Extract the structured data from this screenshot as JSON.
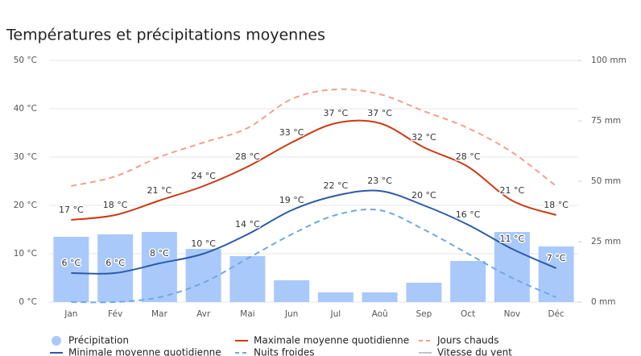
{
  "chart_data": {
    "type": "combo",
    "title": "Températures et précipitations moyennes",
    "categories": [
      "Jan",
      "Fév",
      "Mar",
      "Avr",
      "Mai",
      "Jun",
      "Jul",
      "Aoû",
      "Sep",
      "Oct",
      "Nov",
      "Déc"
    ],
    "ylim": [
      0,
      50
    ],
    "yticks": [
      {
        "value": 0,
        "label": "0 °C"
      },
      {
        "value": 10,
        "label": "10 °C"
      },
      {
        "value": 20,
        "label": "20 °C"
      },
      {
        "value": 30,
        "label": "30 °C"
      },
      {
        "value": 40,
        "label": "40 °C"
      },
      {
        "value": 50,
        "label": "50 °C"
      }
    ],
    "y2lim": [
      0,
      100
    ],
    "y2ticks": [
      {
        "value": 0,
        "label": "0 mm"
      },
      {
        "value": 25,
        "label": "25 mm"
      },
      {
        "value": 50,
        "label": "50 mm"
      },
      {
        "value": 75,
        "label": "75 mm"
      },
      {
        "value": 100,
        "label": "100 mm"
      }
    ],
    "grid": true,
    "legend": "bottom",
    "series": [
      {
        "name": "Précipitation",
        "kind": "bar",
        "axis": "y2",
        "color": "#a9c9fb",
        "values": [
          27,
          28,
          29,
          22,
          19,
          9,
          4,
          4,
          8,
          17,
          29,
          23
        ]
      },
      {
        "name": "Maximale moyenne quotidienne",
        "kind": "line",
        "color": "#cc3a12",
        "label_color": "#8a2a0c",
        "values": [
          17,
          18,
          21,
          24,
          28,
          33,
          37,
          37,
          32,
          28,
          21,
          18
        ],
        "value_labels": [
          "17 °C",
          "18 °C",
          "21 °C",
          "24 °C",
          "28 °C",
          "33 °C",
          "37 °C",
          "37 °C",
          "32 °C",
          "28 °C",
          "21 °C",
          "18 °C"
        ]
      },
      {
        "name": "Jours chauds",
        "kind": "dashed",
        "color": "#f2a08e",
        "values": [
          24,
          26,
          30,
          33,
          36,
          42,
          44,
          43,
          39.5,
          36,
          31,
          24
        ]
      },
      {
        "name": "Minimale moyenne quotidienne",
        "kind": "line",
        "color": "#2b5ba8",
        "label_color": "#1f4a94",
        "values": [
          6,
          6,
          8,
          10,
          14,
          19,
          22,
          23,
          20,
          16,
          11,
          7
        ],
        "value_labels": [
          "6 °C",
          "6 °C",
          "8 °C",
          "10 °C",
          "14 °C",
          "19 °C",
          "22 °C",
          "23 °C",
          "20 °C",
          "16 °C",
          "11 °C",
          "7 °C"
        ]
      },
      {
        "name": "Nuits froides",
        "kind": "dashed",
        "color": "#6ea9e0",
        "values": [
          0,
          0,
          1,
          4,
          9,
          14,
          18,
          19,
          15,
          10,
          5,
          1
        ]
      },
      {
        "name": "Vitesse du vent",
        "kind": "line",
        "color": "#c4c4c4",
        "values": [
          null,
          null,
          null,
          null,
          null,
          null,
          null,
          null,
          null,
          null,
          null,
          null
        ]
      }
    ]
  }
}
